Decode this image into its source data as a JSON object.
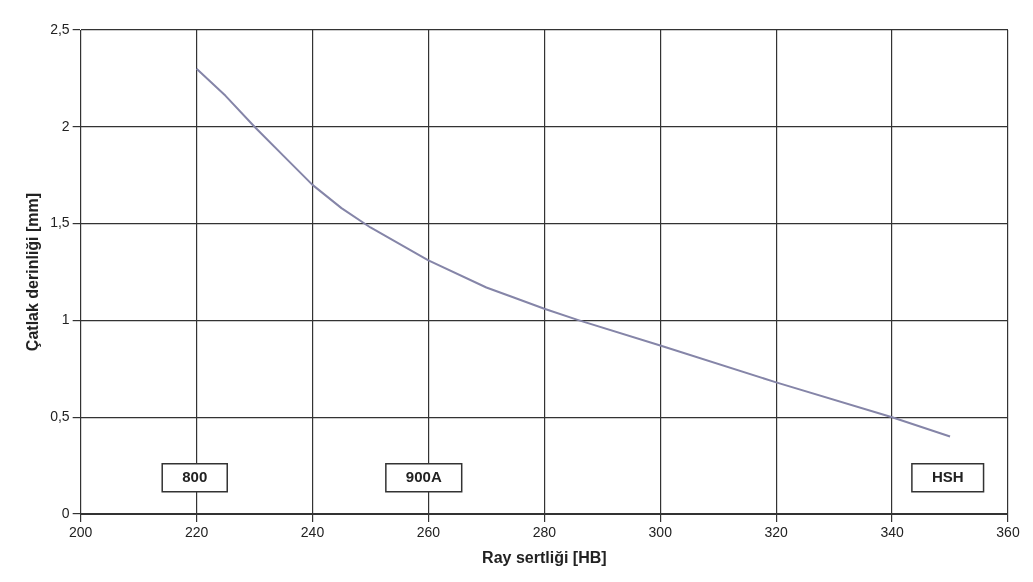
{
  "chart_data": {
    "type": "line",
    "xlabel": "Ray sertliği [HB]",
    "ylabel": "Çatlak derinliği [mm]",
    "x": [
      220,
      225,
      230,
      235,
      240,
      245,
      250,
      260,
      270,
      280,
      286,
      300,
      320,
      340,
      350
    ],
    "series": [
      {
        "color": "#8585a8",
        "values": [
          2.3,
          2.16,
          2.0,
          1.85,
          1.7,
          1.58,
          1.48,
          1.31,
          1.17,
          1.06,
          1.0,
          0.87,
          0.68,
          0.5,
          0.4
        ]
      }
    ],
    "xlim": [
      200,
      360
    ],
    "xticks": [
      200,
      220,
      240,
      260,
      280,
      300,
      320,
      340,
      360
    ],
    "ylim": [
      0,
      2.5
    ],
    "yticks": [
      {
        "value": 0,
        "label": "0"
      },
      {
        "value": 0.5,
        "label": "0,5"
      },
      {
        "value": 1,
        "label": "1"
      },
      {
        "value": 1.5,
        "label": "1,5"
      },
      {
        "value": 2,
        "label": "2"
      },
      {
        "value": 2.5,
        "label": "2,5"
      }
    ],
    "annotations": [
      "800",
      "900A",
      "HSH"
    ],
    "grid": true,
    "legend": false,
    "marker": "none",
    "line_style": "solid"
  }
}
